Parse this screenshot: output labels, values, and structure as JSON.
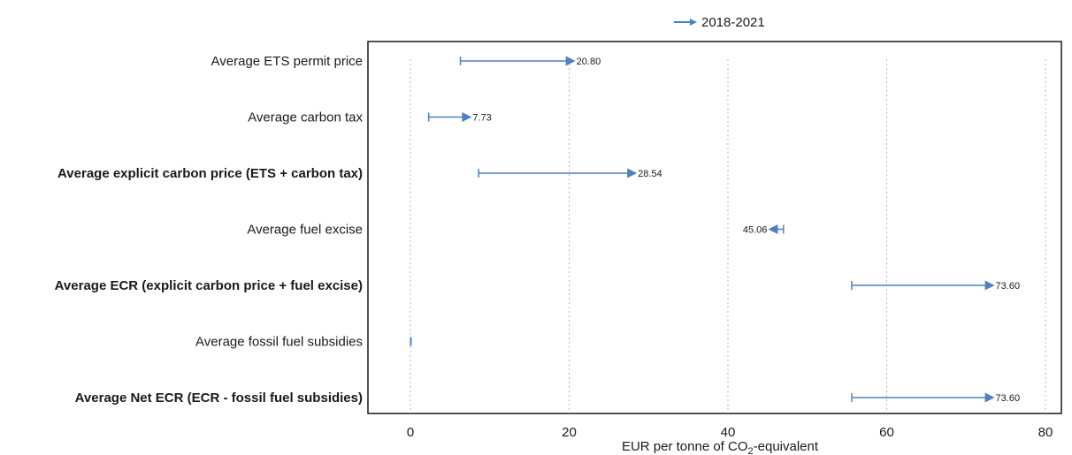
{
  "chart_data": {
    "type": "dumbbell",
    "xlabel": {
      "prefix": "EUR per tonne of CO",
      "sub": "2",
      "suffix": "-equivalent"
    },
    "xlim": [
      0,
      80
    ],
    "x_ticks": [
      0,
      20,
      40,
      60,
      80
    ],
    "grid": "vertical dotted",
    "legend": {
      "position": "top-center",
      "entries": [
        "2018-2021"
      ]
    },
    "series": [
      {
        "name": "2018-2021",
        "color": "#4f81bd"
      }
    ],
    "rows": [
      {
        "category": "Average ETS permit price",
        "bold": false,
        "start": 6.3,
        "end": 20.8,
        "label": "20.80"
      },
      {
        "category": "Average carbon tax",
        "bold": false,
        "start": 2.3,
        "end": 7.73,
        "label": "7.73"
      },
      {
        "category": "Average explicit carbon price (ETS + carbon tax)",
        "bold": true,
        "start": 8.6,
        "end": 28.54,
        "label": "28.54"
      },
      {
        "category": "Average fuel excise",
        "bold": false,
        "start": 47.0,
        "end": 45.06,
        "label": "45.06"
      },
      {
        "category": "Average ECR (explicit carbon price + fuel excise)",
        "bold": true,
        "start": 55.6,
        "end": 73.6,
        "label": "73.60"
      },
      {
        "category": "Average fossil fuel subsidies",
        "bold": false,
        "start": 0.05,
        "end": 0.05,
        "label": ""
      },
      {
        "category": "Average Net ECR (ECR - fossil fuel subsidies)",
        "bold": true,
        "start": 55.6,
        "end": 73.6,
        "label": "73.60"
      }
    ]
  }
}
